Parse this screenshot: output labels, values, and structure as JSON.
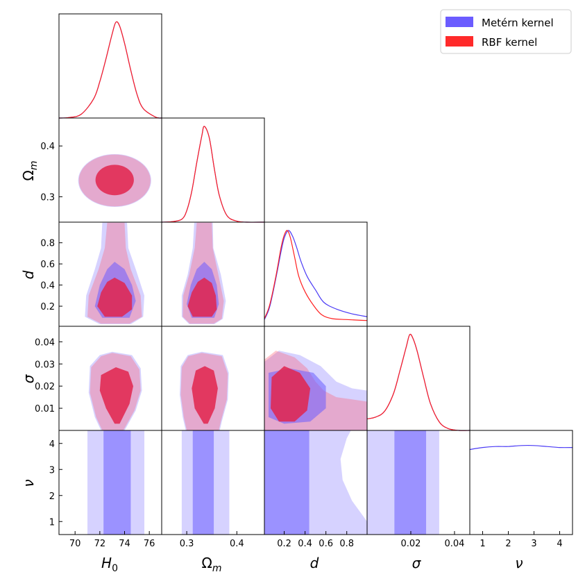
{
  "chart_data": {
    "type": "corner",
    "parameters": [
      {
        "key": "H0",
        "label": "H",
        "sub": "0",
        "ticks": [
          70,
          72,
          74,
          76
        ],
        "range": [
          68.7,
          77.0
        ]
      },
      {
        "key": "Om",
        "label": "Ω",
        "sub": "m",
        "ticks": [
          0.3,
          0.4
        ],
        "range": [
          0.25,
          0.455
        ]
      },
      {
        "key": "d",
        "label": "d",
        "sub": "",
        "ticks": [
          0.2,
          0.4,
          0.6,
          0.8
        ],
        "range": [
          0.01,
          0.995
        ]
      },
      {
        "key": "sigma",
        "label": "σ",
        "sub": "",
        "ticks": [
          0.01,
          0.02,
          0.03,
          0.04
        ],
        "range": [
          0.0,
          0.047
        ]
      },
      {
        "key": "nu",
        "label": "ν",
        "sub": "",
        "ticks": [
          1,
          2,
          3,
          4
        ],
        "range": [
          0.5,
          4.5
        ]
      }
    ],
    "tick_labels": {
      "H0": [
        "70",
        "72",
        "74",
        "76"
      ],
      "Om_x": [
        "0.3",
        "0.4"
      ],
      "Om_y": [
        "0.3",
        "0.4"
      ],
      "d_x": [
        "0.2",
        "0.4",
        "0.6",
        "0.8"
      ],
      "d_y": [
        "0.2",
        "0.4",
        "0.6",
        "0.8"
      ],
      "sigma_x": [
        "0.02",
        "0.04"
      ],
      "sigma_y": [
        "0.01",
        "0.02",
        "0.03",
        "0.04"
      ],
      "nu": [
        "1",
        "2",
        "3",
        "4"
      ]
    },
    "series": [
      {
        "name": "Metérn kernel",
        "color": "#5b4dfc",
        "estimates": {
          "H0": 73.3,
          "Om": 0.333,
          "d": 0.24,
          "sigma": 0.0195,
          "nu": "unconstrained"
        }
      },
      {
        "name": "RBF kernel",
        "color": "#ff2a2a",
        "estimates": {
          "H0": 73.3,
          "Om": 0.333,
          "d": 0.23,
          "sigma": 0.0195
        }
      }
    ],
    "marginals": {
      "H0": {
        "x": [
          68.7,
          69.5,
          70.5,
          71.5,
          72.0,
          72.5,
          73.0,
          73.3,
          73.6,
          74.0,
          74.5,
          75.0,
          75.5,
          76.5,
          77.0
        ],
        "y": [
          0.0,
          0.005,
          0.04,
          0.2,
          0.38,
          0.62,
          0.88,
          1.0,
          0.96,
          0.78,
          0.5,
          0.25,
          0.1,
          0.01,
          0.0
        ]
      },
      "Om": {
        "x": [
          0.25,
          0.27,
          0.29,
          0.3,
          0.31,
          0.32,
          0.33,
          0.335,
          0.345,
          0.355,
          0.365,
          0.38,
          0.4,
          0.42,
          0.455
        ],
        "y": [
          0.0,
          0.005,
          0.03,
          0.12,
          0.32,
          0.62,
          0.9,
          1.0,
          0.88,
          0.56,
          0.28,
          0.07,
          0.01,
          0.0,
          0.0
        ]
      },
      "d_matern": {
        "x": [
          0.01,
          0.06,
          0.12,
          0.17,
          0.2,
          0.24,
          0.28,
          0.32,
          0.36,
          0.42,
          0.5,
          0.58,
          0.7,
          0.85,
          0.995
        ],
        "y": [
          0.07,
          0.2,
          0.5,
          0.78,
          0.92,
          1.0,
          0.94,
          0.82,
          0.68,
          0.52,
          0.38,
          0.25,
          0.18,
          0.13,
          0.1
        ]
      },
      "d_rbf": {
        "x": [
          0.01,
          0.06,
          0.12,
          0.17,
          0.2,
          0.23,
          0.26,
          0.3,
          0.34,
          0.4,
          0.48,
          0.56,
          0.66,
          0.8,
          0.995
        ],
        "y": [
          0.08,
          0.22,
          0.52,
          0.82,
          0.95,
          1.0,
          0.92,
          0.72,
          0.52,
          0.36,
          0.22,
          0.12,
          0.08,
          0.07,
          0.06
        ]
      },
      "sigma": {
        "x": [
          0.0,
          0.004,
          0.008,
          0.012,
          0.015,
          0.018,
          0.0195,
          0.021,
          0.023,
          0.026,
          0.029,
          0.033,
          0.037,
          0.042,
          0.047
        ],
        "y": [
          0.12,
          0.14,
          0.2,
          0.38,
          0.62,
          0.88,
          1.0,
          0.96,
          0.82,
          0.54,
          0.28,
          0.09,
          0.02,
          0.0,
          0.0
        ]
      },
      "nu": {
        "x": [
          0.5,
          1.0,
          1.5,
          2.0,
          2.5,
          3.0,
          3.5,
          4.0,
          4.5
        ],
        "y": [
          0.86,
          0.88,
          0.89,
          0.89,
          0.9,
          0.9,
          0.89,
          0.88,
          0.88
        ]
      }
    },
    "legend": {
      "position": "top-right",
      "entries": [
        "Metérn kernel",
        "RBF kernel"
      ]
    },
    "grid": false
  }
}
